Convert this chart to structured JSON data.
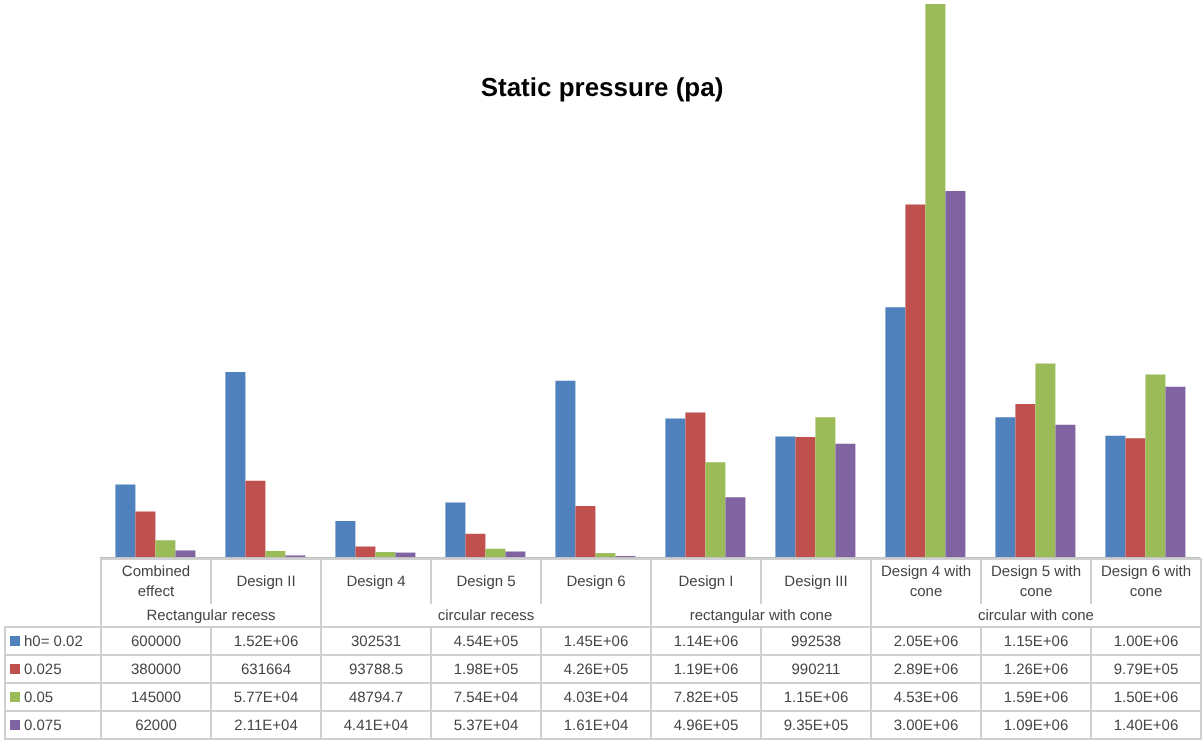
{
  "chart_data": {
    "type": "bar",
    "title": "Static pressure (pa)",
    "categories": [
      "Combined effect",
      "Design II",
      "Design 4",
      "Design 5",
      "Design 6",
      "Design I",
      "Design III",
      "Design 4 with cone",
      "Design 5 with cone",
      "Design 6 with cone"
    ],
    "annotations": [
      "Rectangular recess",
      "circular recess",
      "rectangular with cone",
      "circular with cone"
    ],
    "legend": "bottom",
    "series": [
      {
        "name": "h0= 0.02",
        "color": "#4f81bd",
        "values": [
          600000,
          1520000,
          302531,
          454000,
          1450000,
          1140000,
          992538,
          2050000,
          1150000,
          1000000
        ],
        "value_labels": [
          "600000",
          "1.52E+06",
          "302531",
          "4.54E+05",
          "1.45E+06",
          "1.14E+06",
          "992538",
          "2.05E+06",
          "1.15E+06",
          "1.00E+06"
        ]
      },
      {
        "name": "0.025",
        "color": "#c0504d",
        "values": [
          380000,
          631664,
          93788.5,
          198000,
          426000,
          1190000,
          990211,
          2890000,
          1260000,
          979000
        ],
        "value_labels": [
          "380000",
          "631664",
          "93788.5",
          "1.98E+05",
          "4.26E+05",
          "1.19E+06",
          "990211",
          "2.89E+06",
          "1.26E+06",
          "9.79E+05"
        ]
      },
      {
        "name": "0.05",
        "color": "#9bbb59",
        "values": [
          145000,
          57700,
          48794.7,
          75400,
          40300,
          782000,
          1150000,
          4530000,
          1590000,
          1500000
        ],
        "value_labels": [
          "145000",
          "5.77E+04",
          "48794.7",
          "7.54E+04",
          "4.03E+04",
          "7.82E+05",
          "1.15E+06",
          "4.53E+06",
          "1.59E+06",
          "1.50E+06"
        ]
      },
      {
        "name": "0.075",
        "color": "#8064a2",
        "values": [
          62000,
          21100,
          44100,
          53700,
          16100,
          496000,
          935000,
          3000000,
          1090000,
          1400000
        ],
        "value_labels": [
          "62000",
          "2.11E+04",
          "4.41E+04",
          "5.37E+04",
          "1.61E+04",
          "4.96E+05",
          "9.35E+05",
          "3.00E+06",
          "1.09E+06",
          "1.40E+06"
        ]
      }
    ]
  }
}
